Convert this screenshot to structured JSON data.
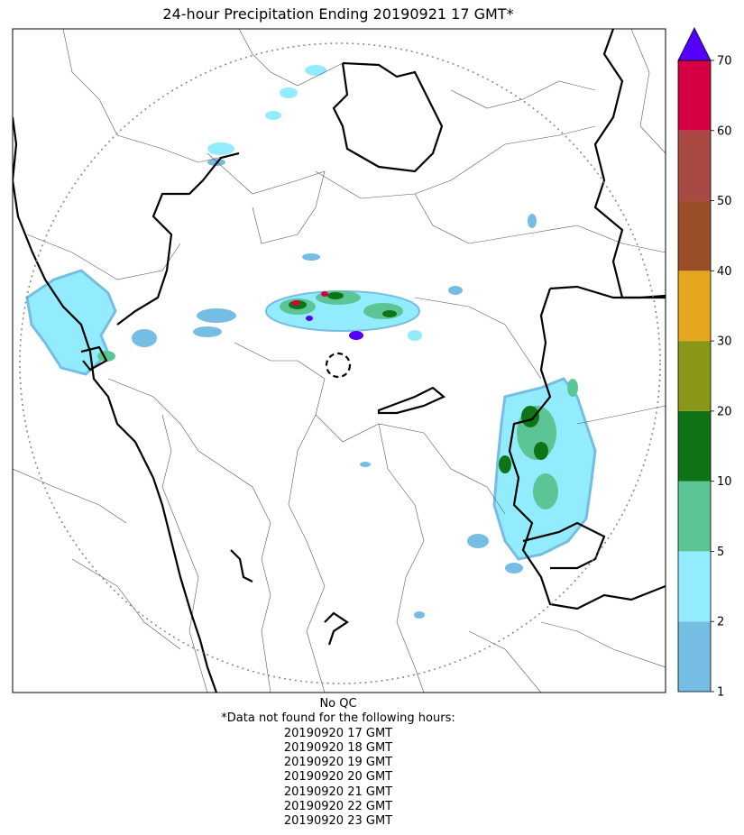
{
  "title": "24-hour Precipitation Ending 20190921 17 GMT*",
  "colorbar": {
    "levels": [
      1,
      2,
      5,
      10,
      20,
      30,
      40,
      50,
      60,
      70
    ],
    "tick_labels": [
      "1",
      "2",
      "5",
      "10",
      "20",
      "30",
      "40",
      "50",
      "60",
      "70"
    ],
    "colors": [
      "#75bde3",
      "#93ecfd",
      "#5cc595",
      "#0f7318",
      "#8a9618",
      "#e6a61d",
      "#9a4e28",
      "#a84a43",
      "#d50044"
    ],
    "extend_max_color": "#5500ff"
  },
  "footer": {
    "qc": "No QC",
    "missing_header": "*Data not found for the following hours:",
    "missing_hours": [
      "20190920 17 GMT",
      "20190920 18 GMT",
      "20190920 19 GMT",
      "20190920 20 GMT",
      "20190920 21 GMT",
      "20190920 22 GMT",
      "20190920 23 GMT"
    ]
  }
}
